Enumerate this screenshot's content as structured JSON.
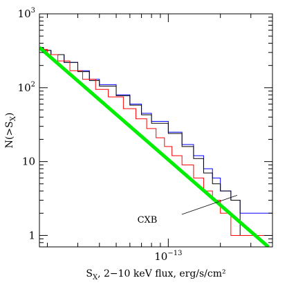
{
  "chart_data": {
    "type": "line",
    "title": "",
    "xlabel": {
      "main": "S",
      "sub": "X",
      "rest": ", 2−10 keV flux, erg/s/cm²"
    },
    "ylabel": {
      "main": "N(>S",
      "sub": "X",
      "close": ")"
    },
    "x_scale": "log",
    "y_scale": "log",
    "xlim": [
      1.8e-14,
      4e-13
    ],
    "ylim": [
      0.7,
      1000
    ],
    "grid": false,
    "legend": "none",
    "x_ticks": [
      {
        "value": 1e-13,
        "base": "10",
        "exp": "−13"
      }
    ],
    "y_ticks": [
      {
        "value": 1,
        "label": "1"
      },
      {
        "value": 10,
        "label": "10"
      },
      {
        "value": 100,
        "base": "10",
        "exp": "2"
      },
      {
        "value": 1000,
        "base": "10",
        "exp": "3"
      }
    ],
    "annotations": [
      {
        "text": "CXB",
        "points_to": {
          "x": 2.5e-13,
          "y": 3.5
        }
      }
    ],
    "colors": {
      "green": "#00ee00",
      "blue": "#0000ff",
      "red": "#ff0000",
      "black": "#000000"
    },
    "series": [
      {
        "color": "green",
        "style": "line",
        "x": [
          1.8e-14,
          3.79e-13
        ],
        "y": [
          350,
          0.7
        ]
      },
      {
        "color": "blue",
        "style": "step",
        "x": [
          1.8e-14,
          1.9e-14,
          2.1e-14,
          2.5e-14,
          3e-14,
          3.5e-14,
          4e-14,
          5e-14,
          6e-14,
          7e-14,
          8e-14,
          1e-13,
          1.2e-13,
          1.4e-13,
          1.6e-13,
          1.8e-13,
          2e-13,
          2.3e-13,
          2.6e-13,
          4e-13
        ],
        "y": [
          350,
          320,
          280,
          220,
          170,
          130,
          110,
          80,
          60,
          45,
          35,
          25,
          17,
          12,
          8,
          6,
          4,
          3,
          2,
          1
        ]
      },
      {
        "color": "black",
        "style": "step",
        "x": [
          1.8e-14,
          1.9e-14,
          2.1e-14,
          2.5e-14,
          3e-14,
          3.5e-14,
          4e-14,
          5e-14,
          6e-14,
          7e-14,
          8e-14,
          1e-13,
          1.2e-13,
          1.4e-13,
          1.6e-13,
          1.8e-13,
          2e-13,
          2.3e-13,
          2.6e-13
        ],
        "y": [
          350,
          320,
          280,
          220,
          165,
          125,
          105,
          78,
          58,
          43,
          33,
          24,
          16,
          11,
          7,
          5,
          4,
          3,
          1
        ]
      },
      {
        "color": "red",
        "style": "step",
        "x": [
          1.8e-14,
          2e-14,
          2.3e-14,
          2.7e-14,
          3.2e-14,
          3.8e-14,
          4.5e-14,
          5.5e-14,
          6.5e-14,
          7.5e-14,
          8.5e-14,
          9.5e-14,
          1.05e-13,
          1.2e-13,
          1.4e-13,
          1.6e-13,
          1.8e-13,
          2e-13,
          2.3e-13,
          2.6e-13,
          4e-13
        ],
        "y": [
          330,
          280,
          230,
          170,
          130,
          95,
          75,
          52,
          38,
          28,
          21,
          16,
          12,
          9,
          6,
          4,
          3,
          2,
          1,
          1,
          1
        ]
      }
    ]
  }
}
